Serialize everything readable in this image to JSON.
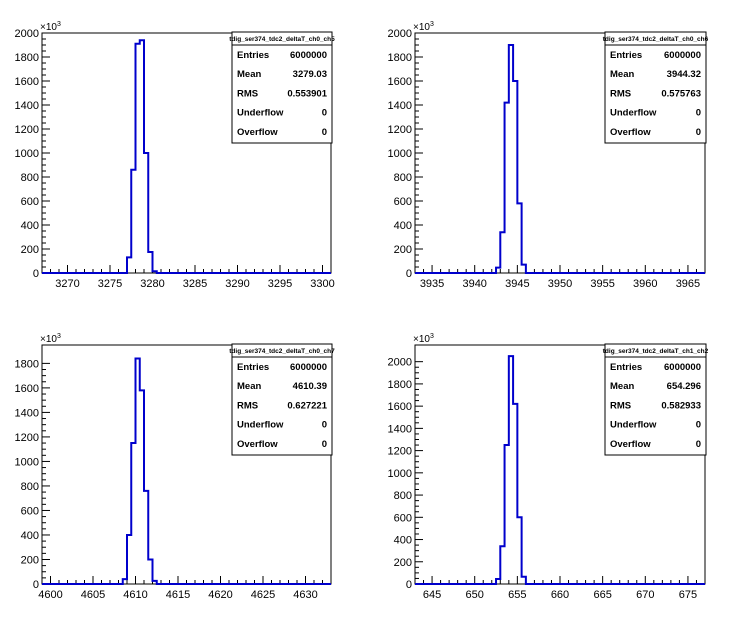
{
  "axis_multiplier": {
    "base": "×10",
    "exp": "3"
  },
  "stat_labels": [
    "Entries",
    "Mean",
    "RMS",
    "Underflow",
    "Overflow"
  ],
  "colors": {
    "hist": "#0000cc",
    "axis": "#000000",
    "background": "#ffffff"
  },
  "chart_data": [
    {
      "type": "bar",
      "title": "tdig_ser374_tdc2_deltaT_ch0_ch5",
      "xlim": [
        3267,
        3301
      ],
      "ylim": [
        0,
        2000
      ],
      "xticks": [
        3270,
        3275,
        3280,
        3285,
        3290,
        3295,
        3300
      ],
      "yticks": [
        0,
        200,
        400,
        600,
        800,
        1000,
        1200,
        1400,
        1600,
        1800,
        2000
      ],
      "bins": [
        [
          3277,
          3277.5,
          130
        ],
        [
          3277.5,
          3278,
          860
        ],
        [
          3278,
          3278.5,
          1910
        ],
        [
          3278.5,
          3279,
          1940
        ],
        [
          3279,
          3279.5,
          1000
        ],
        [
          3279.5,
          3280,
          175
        ],
        [
          3280,
          3280.5,
          15
        ]
      ],
      "stats": [
        "6000000",
        "3279.03",
        "0.553901",
        "0",
        "0"
      ]
    },
    {
      "type": "bar",
      "title": "tdig_ser374_tdc2_deltaT_ch0_ch6",
      "xlim": [
        3933,
        3967
      ],
      "ylim": [
        0,
        2000
      ],
      "xticks": [
        3935,
        3940,
        3945,
        3950,
        3955,
        3960,
        3965
      ],
      "yticks": [
        0,
        200,
        400,
        600,
        800,
        1000,
        1200,
        1400,
        1600,
        1800,
        2000
      ],
      "bins": [
        [
          3942.5,
          3943,
          45
        ],
        [
          3943,
          3943.5,
          340
        ],
        [
          3943.5,
          3944,
          1420
        ],
        [
          3944,
          3944.5,
          1900
        ],
        [
          3944.5,
          3945,
          1600
        ],
        [
          3945,
          3945.5,
          580
        ],
        [
          3945.5,
          3946,
          70
        ]
      ],
      "stats": [
        "6000000",
        "3944.32",
        "0.575763",
        "0",
        "0"
      ]
    },
    {
      "type": "bar",
      "title": "tdig_ser374_tdc2_deltaT_ch0_ch7",
      "xlim": [
        4599,
        4633
      ],
      "ylim": [
        0,
        1950
      ],
      "xticks": [
        4600,
        4605,
        4610,
        4615,
        4620,
        4625,
        4630
      ],
      "yticks": [
        0,
        200,
        400,
        600,
        800,
        1000,
        1200,
        1400,
        1600,
        1800
      ],
      "bins": [
        [
          4608.5,
          4609,
          40
        ],
        [
          4609,
          4609.5,
          400
        ],
        [
          4609.5,
          4610,
          1150
        ],
        [
          4610,
          4610.5,
          1840
        ],
        [
          4610.5,
          4611,
          1580
        ],
        [
          4611,
          4611.5,
          760
        ],
        [
          4611.5,
          4612,
          200
        ],
        [
          4612,
          4612.5,
          25
        ]
      ],
      "stats": [
        "6000000",
        "4610.39",
        "0.627221",
        "0",
        "0"
      ]
    },
    {
      "type": "bar",
      "title": "tdig_ser374_tdc2_deltaT_ch1_ch2",
      "xlim": [
        643,
        677
      ],
      "ylim": [
        0,
        2150
      ],
      "xticks": [
        645,
        650,
        655,
        660,
        665,
        670,
        675
      ],
      "yticks": [
        0,
        200,
        400,
        600,
        800,
        1000,
        1200,
        1400,
        1600,
        1800,
        2000
      ],
      "bins": [
        [
          652.5,
          653,
          45
        ],
        [
          653,
          653.5,
          340
        ],
        [
          653.5,
          654,
          1250
        ],
        [
          654,
          654.5,
          2050
        ],
        [
          654.5,
          655,
          1620
        ],
        [
          655,
          655.5,
          600
        ],
        [
          655.5,
          656,
          65
        ]
      ],
      "stats": [
        "6000000",
        "654.296",
        "0.582933",
        "0",
        "0"
      ]
    }
  ]
}
